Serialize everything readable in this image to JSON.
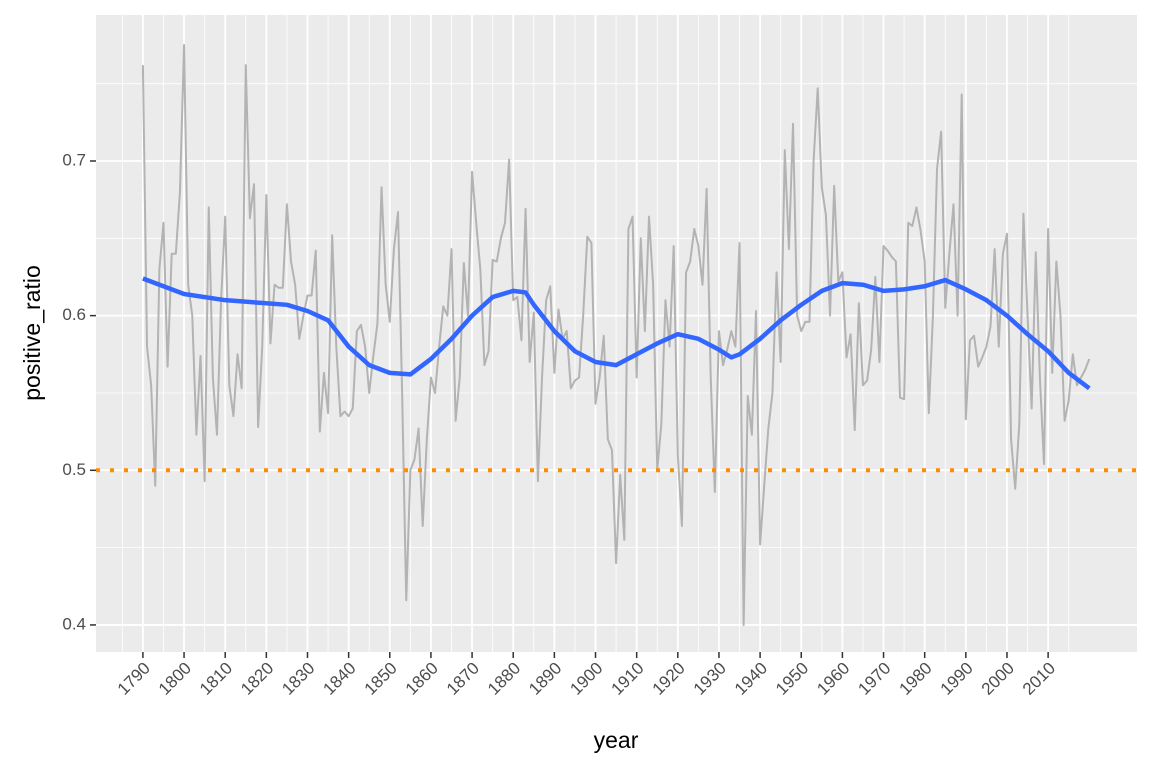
{
  "chart_data": {
    "type": "line",
    "x_label": "year",
    "y_label": "positive_ratio",
    "xlim": [
      1778.6,
      2031.6
    ],
    "ylim": [
      0.3825,
      0.7944
    ],
    "xticks": [
      1790,
      1800,
      1810,
      1820,
      1830,
      1840,
      1850,
      1860,
      1870,
      1880,
      1890,
      1900,
      1910,
      1920,
      1930,
      1940,
      1950,
      1960,
      1970,
      1980,
      1990,
      2000,
      2010
    ],
    "yticks": [
      0.4,
      0.5,
      0.6,
      0.7
    ],
    "grid": true,
    "hline": {
      "value": 0.5,
      "color": "#ff8c00",
      "style": "dotted"
    },
    "series": [
      {
        "color": "#b3b3b3",
        "x": [
          1790,
          1791,
          1792,
          1793,
          1794,
          1795,
          1796,
          1797,
          1798,
          1799,
          1800,
          1801,
          1802,
          1803,
          1804,
          1805,
          1806,
          1807,
          1808,
          1809,
          1810,
          1811,
          1812,
          1813,
          1814,
          1815,
          1816,
          1817,
          1818,
          1819,
          1820,
          1821,
          1822,
          1823,
          1824,
          1825,
          1826,
          1827,
          1828,
          1829,
          1830,
          1831,
          1832,
          1833,
          1834,
          1835,
          1836,
          1837,
          1838,
          1839,
          1840,
          1841,
          1842,
          1843,
          1844,
          1845,
          1846,
          1847,
          1848,
          1849,
          1850,
          1851,
          1852,
          1853,
          1854,
          1855,
          1856,
          1857,
          1858,
          1859,
          1860,
          1861,
          1862,
          1863,
          1864,
          1865,
          1866,
          1867,
          1868,
          1869,
          1870,
          1871,
          1872,
          1873,
          1874,
          1875,
          1876,
          1877,
          1878,
          1879,
          1880,
          1881,
          1882,
          1883,
          1884,
          1885,
          1886,
          1887,
          1888,
          1889,
          1890,
          1891,
          1892,
          1893,
          1894,
          1895,
          1896,
          1897,
          1898,
          1899,
          1900,
          1901,
          1902,
          1903,
          1904,
          1905,
          1906,
          1907,
          1908,
          1909,
          1910,
          1911,
          1912,
          1913,
          1914,
          1915,
          1916,
          1917,
          1918,
          1919,
          1920,
          1921,
          1922,
          1923,
          1924,
          1925,
          1926,
          1927,
          1928,
          1929,
          1930,
          1931,
          1932,
          1933,
          1934,
          1935,
          1936,
          1937,
          1938,
          1939,
          1940,
          1941,
          1942,
          1943,
          1944,
          1945,
          1946,
          1947,
          1948,
          1949,
          1950,
          1951,
          1952,
          1953,
          1954,
          1955,
          1956,
          1957,
          1958,
          1959,
          1960,
          1961,
          1962,
          1963,
          1964,
          1965,
          1966,
          1967,
          1968,
          1969,
          1970,
          1971,
          1972,
          1973,
          1974,
          1975,
          1976,
          1977,
          1978,
          1979,
          1980,
          1981,
          1982,
          1983,
          1984,
          1985,
          1986,
          1987,
          1988,
          1989,
          1990,
          1991,
          1992,
          1993,
          1994,
          1995,
          1996,
          1997,
          1998,
          1999,
          2000,
          2001,
          2002,
          2003,
          2004,
          2005,
          2006,
          2007,
          2008,
          2009,
          2010,
          2011,
          2012,
          2013,
          2014,
          2015,
          2016,
          2017,
          2018,
          2019,
          2020
        ],
        "values": [
          0.762,
          0.58,
          0.555,
          0.49,
          0.63,
          0.66,
          0.567,
          0.64,
          0.64,
          0.68,
          0.775,
          0.62,
          0.6,
          0.523,
          0.574,
          0.493,
          0.67,
          0.56,
          0.523,
          0.61,
          0.664,
          0.555,
          0.535,
          0.575,
          0.553,
          0.762,
          0.663,
          0.685,
          0.528,
          0.58,
          0.678,
          0.582,
          0.62,
          0.618,
          0.618,
          0.672,
          0.635,
          0.62,
          0.585,
          0.6,
          0.613,
          0.613,
          0.642,
          0.525,
          0.563,
          0.537,
          0.652,
          0.58,
          0.535,
          0.538,
          0.535,
          0.54,
          0.59,
          0.594,
          0.58,
          0.55,
          0.574,
          0.595,
          0.683,
          0.62,
          0.596,
          0.643,
          0.667,
          0.55,
          0.416,
          0.5,
          0.507,
          0.527,
          0.464,
          0.52,
          0.56,
          0.55,
          0.58,
          0.606,
          0.6,
          0.643,
          0.532,
          0.56,
          0.634,
          0.6,
          0.693,
          0.66,
          0.63,
          0.568,
          0.577,
          0.636,
          0.635,
          0.65,
          0.66,
          0.701,
          0.61,
          0.612,
          0.584,
          0.669,
          0.57,
          0.602,
          0.493,
          0.56,
          0.61,
          0.619,
          0.563,
          0.604,
          0.585,
          0.59,
          0.553,
          0.558,
          0.56,
          0.6,
          0.651,
          0.647,
          0.543,
          0.56,
          0.587,
          0.52,
          0.513,
          0.44,
          0.497,
          0.455,
          0.656,
          0.664,
          0.56,
          0.65,
          0.59,
          0.664,
          0.62,
          0.5,
          0.53,
          0.61,
          0.58,
          0.645,
          0.51,
          0.464,
          0.628,
          0.635,
          0.656,
          0.645,
          0.62,
          0.682,
          0.56,
          0.486,
          0.59,
          0.568,
          0.578,
          0.59,
          0.58,
          0.647,
          0.4,
          0.548,
          0.523,
          0.603,
          0.452,
          0.49,
          0.527,
          0.55,
          0.628,
          0.57,
          0.707,
          0.643,
          0.724,
          0.6,
          0.59,
          0.596,
          0.596,
          0.7,
          0.747,
          0.683,
          0.665,
          0.6,
          0.684,
          0.622,
          0.628,
          0.573,
          0.588,
          0.526,
          0.608,
          0.555,
          0.558,
          0.578,
          0.625,
          0.57,
          0.645,
          0.642,
          0.638,
          0.635,
          0.547,
          0.546,
          0.66,
          0.658,
          0.67,
          0.655,
          0.635,
          0.537,
          0.6,
          0.695,
          0.719,
          0.605,
          0.64,
          0.672,
          0.6,
          0.743,
          0.533,
          0.584,
          0.587,
          0.567,
          0.573,
          0.58,
          0.593,
          0.643,
          0.58,
          0.64,
          0.653,
          0.52,
          0.488,
          0.53,
          0.666,
          0.6,
          0.54,
          0.641,
          0.56,
          0.504,
          0.656,
          0.563,
          0.635,
          0.6,
          0.532,
          0.545,
          0.575,
          0.555,
          0.56,
          0.565,
          0.572
        ]
      },
      {
        "color": "#3366ff",
        "x": [
          1790,
          1800,
          1810,
          1820,
          1825,
          1830,
          1835,
          1840,
          1845,
          1850,
          1855,
          1860,
          1865,
          1870,
          1875,
          1880,
          1883,
          1885,
          1890,
          1895,
          1900,
          1905,
          1910,
          1915,
          1920,
          1925,
          1930,
          1933,
          1935,
          1940,
          1945,
          1950,
          1955,
          1960,
          1965,
          1970,
          1975,
          1980,
          1985,
          1990,
          1995,
          2000,
          2005,
          2010,
          2015,
          2020
        ],
        "values": [
          0.624,
          0.614,
          0.61,
          0.608,
          0.607,
          0.603,
          0.597,
          0.58,
          0.568,
          0.563,
          0.562,
          0.572,
          0.585,
          0.6,
          0.612,
          0.616,
          0.615,
          0.607,
          0.59,
          0.577,
          0.57,
          0.568,
          0.575,
          0.582,
          0.588,
          0.585,
          0.578,
          0.573,
          0.575,
          0.585,
          0.597,
          0.607,
          0.616,
          0.621,
          0.62,
          0.616,
          0.617,
          0.619,
          0.623,
          0.617,
          0.61,
          0.6,
          0.588,
          0.577,
          0.563,
          0.553
        ]
      }
    ]
  }
}
